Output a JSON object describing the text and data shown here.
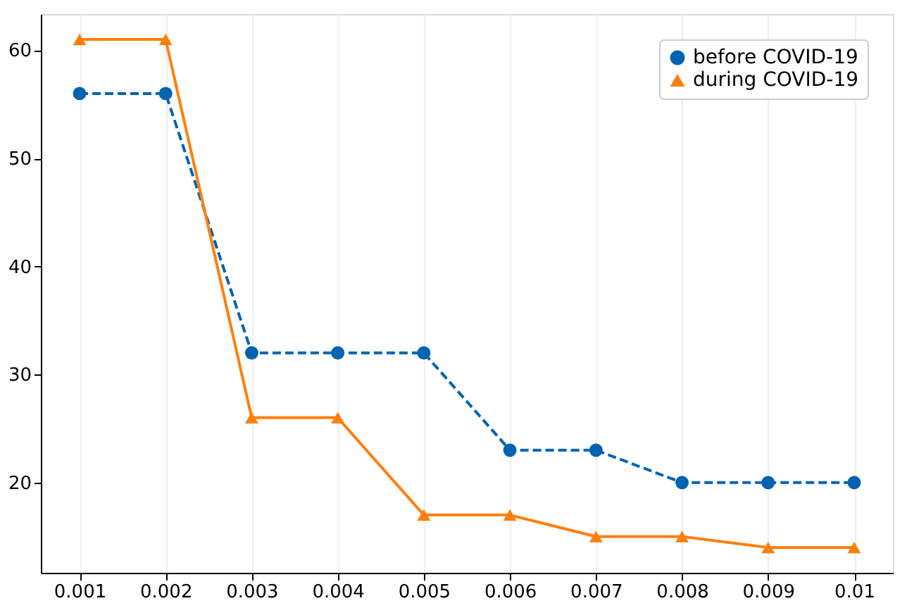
{
  "chart_data": {
    "type": "line",
    "x": [
      0.001,
      0.002,
      0.003,
      0.004,
      0.005,
      0.006,
      0.007,
      0.008,
      0.009,
      0.01
    ],
    "series": [
      {
        "name": "before COVID-19",
        "color": "#0063b1",
        "marker": "circle",
        "line_style": "dashed",
        "values": [
          56,
          56,
          32,
          32,
          32,
          23,
          23,
          20,
          20,
          20
        ]
      },
      {
        "name": "during COVID-19",
        "color": "#ff7f0e",
        "marker": "triangle",
        "line_style": "solid",
        "values": [
          61,
          61,
          26,
          26,
          17,
          17,
          15,
          15,
          14,
          14
        ]
      }
    ],
    "xlim": [
      0.00055,
      0.01045
    ],
    "xticks": [
      0.001,
      0.002,
      0.003,
      0.004,
      0.005,
      0.006,
      0.007,
      0.008,
      0.009,
      0.01
    ],
    "ylim": [
      11.65,
      63.35
    ],
    "yticks": [
      20,
      30,
      40,
      50,
      60
    ],
    "grid": "x",
    "legend": "top right"
  }
}
